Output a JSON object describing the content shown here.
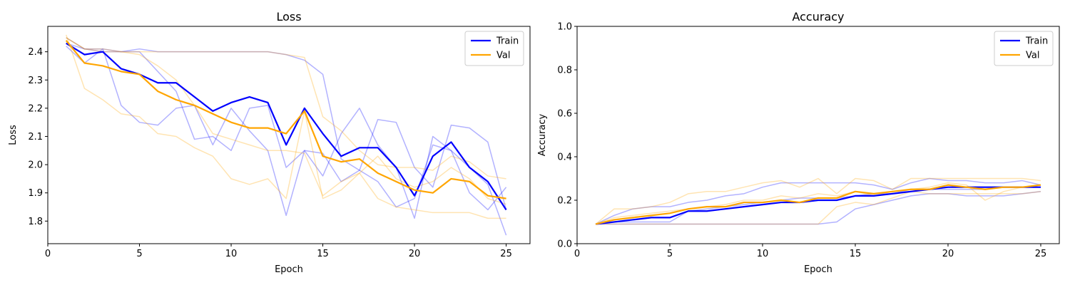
{
  "chart_data": [
    {
      "type": "line",
      "title": "Loss",
      "xlabel": "Epoch",
      "ylabel": "Loss",
      "xlim": [
        0,
        26.3
      ],
      "ylim": [
        1.72,
        2.49
      ],
      "xticks": [
        0,
        5,
        10,
        15,
        20,
        25
      ],
      "yticks": [
        1.8,
        1.9,
        2.0,
        2.1,
        2.2,
        2.3,
        2.4
      ],
      "ytick_decimals": 1,
      "legend": "top-right",
      "x": [
        1,
        2,
        3,
        4,
        5,
        6,
        7,
        8,
        9,
        10,
        11,
        12,
        13,
        14,
        15,
        16,
        17,
        18,
        19,
        20,
        21,
        22,
        23,
        24,
        25
      ],
      "series": [
        {
          "name": "Train",
          "color": "#0000ff",
          "values": [
            2.43,
            2.39,
            2.4,
            2.34,
            2.32,
            2.29,
            2.29,
            2.24,
            2.19,
            2.22,
            2.24,
            2.22,
            2.07,
            2.2,
            2.11,
            2.03,
            2.06,
            2.06,
            1.99,
            1.89,
            2.03,
            2.08,
            1.99,
            1.94,
            1.84
          ]
        },
        {
          "name": "Val",
          "color": "#ffa500",
          "values": [
            2.44,
            2.36,
            2.35,
            2.33,
            2.32,
            2.26,
            2.23,
            2.21,
            2.18,
            2.15,
            2.13,
            2.13,
            2.11,
            2.19,
            2.03,
            2.01,
            2.02,
            1.97,
            1.94,
            1.91,
            1.9,
            1.95,
            1.94,
            1.89,
            1.88
          ]
        }
      ],
      "runs": [
        {
          "color": "#0000ff",
          "values": [
            2.42,
            2.36,
            2.41,
            2.21,
            2.15,
            2.14,
            2.2,
            2.21,
            2.07,
            2.2,
            2.12,
            2.05,
            1.82,
            2.05,
            1.96,
            2.11,
            2.2,
            2.07,
            1.99,
            1.81,
            2.1,
            2.05,
            1.9,
            1.84,
            1.92
          ]
        },
        {
          "color": "#0000ff",
          "values": [
            2.45,
            2.41,
            2.41,
            2.4,
            2.41,
            2.4,
            2.4,
            2.4,
            2.4,
            2.4,
            2.4,
            2.4,
            2.39,
            2.37,
            2.32,
            2.02,
            1.98,
            1.94,
            1.85,
            1.88,
            2.07,
            2.05,
            1.99,
            1.93,
            1.75
          ]
        },
        {
          "color": "#0000ff",
          "values": [
            2.43,
            2.41,
            2.4,
            2.4,
            2.4,
            2.33,
            2.26,
            2.09,
            2.1,
            2.05,
            2.2,
            2.21,
            1.99,
            2.05,
            2.04,
            1.94,
            1.98,
            2.16,
            2.15,
            1.99,
            1.92,
            2.14,
            2.13,
            2.08,
            1.84
          ]
        },
        {
          "color": "#ffa500",
          "values": [
            2.46,
            2.27,
            2.23,
            2.18,
            2.17,
            2.11,
            2.1,
            2.06,
            2.03,
            1.95,
            1.93,
            1.95,
            1.88,
            2.19,
            1.88,
            1.91,
            1.97,
            1.88,
            1.85,
            1.84,
            1.83,
            1.83,
            1.83,
            1.81,
            1.81
          ]
        },
        {
          "color": "#ffa500",
          "values": [
            2.45,
            2.41,
            2.4,
            2.4,
            2.39,
            2.35,
            2.3,
            2.21,
            2.11,
            2.09,
            2.07,
            2.05,
            2.05,
            2.04,
            1.89,
            1.94,
            1.97,
            2.03,
            1.95,
            1.92,
            1.94,
            1.99,
            1.95,
            1.88,
            1.86
          ]
        },
        {
          "color": "#ffa500",
          "values": [
            2.45,
            2.41,
            2.41,
            2.4,
            2.4,
            2.4,
            2.4,
            2.4,
            2.4,
            2.4,
            2.4,
            2.4,
            2.39,
            2.38,
            2.17,
            2.12,
            2.05,
            2.0,
            1.99,
            1.99,
            1.98,
            2.03,
            2.01,
            1.96,
            1.95
          ]
        }
      ]
    },
    {
      "type": "line",
      "title": "Accuracy",
      "xlabel": "Epoch",
      "ylabel": "Accuracy",
      "xlim": [
        0,
        26.0
      ],
      "ylim": [
        0.0,
        1.0
      ],
      "xticks": [
        0,
        5,
        10,
        15,
        20,
        25
      ],
      "yticks": [
        0.0,
        0.2,
        0.4,
        0.6,
        0.8,
        1.0
      ],
      "ytick_decimals": 1,
      "legend": "top-right",
      "x": [
        1,
        2,
        3,
        4,
        5,
        6,
        7,
        8,
        9,
        10,
        11,
        12,
        13,
        14,
        15,
        16,
        17,
        18,
        19,
        20,
        21,
        22,
        23,
        24,
        25
      ],
      "series": [
        {
          "name": "Train",
          "color": "#0000ff",
          "values": [
            0.09,
            0.1,
            0.11,
            0.12,
            0.12,
            0.15,
            0.15,
            0.16,
            0.17,
            0.18,
            0.19,
            0.19,
            0.2,
            0.2,
            0.22,
            0.22,
            0.23,
            0.24,
            0.25,
            0.26,
            0.26,
            0.26,
            0.26,
            0.26,
            0.26
          ]
        },
        {
          "name": "Val",
          "color": "#ffa500",
          "values": [
            0.09,
            0.11,
            0.12,
            0.13,
            0.14,
            0.16,
            0.17,
            0.17,
            0.19,
            0.19,
            0.2,
            0.19,
            0.21,
            0.21,
            0.24,
            0.23,
            0.24,
            0.25,
            0.25,
            0.27,
            0.26,
            0.25,
            0.26,
            0.26,
            0.27
          ]
        }
      ],
      "runs": [
        {
          "color": "#0000ff",
          "values": [
            0.09,
            0.13,
            0.16,
            0.17,
            0.17,
            0.19,
            0.2,
            0.22,
            0.23,
            0.26,
            0.28,
            0.28,
            0.28,
            0.28,
            0.28,
            0.27,
            0.25,
            0.28,
            0.3,
            0.29,
            0.29,
            0.28,
            0.28,
            0.29,
            0.27
          ]
        },
        {
          "color": "#0000ff",
          "values": [
            0.09,
            0.09,
            0.09,
            0.09,
            0.09,
            0.09,
            0.09,
            0.09,
            0.09,
            0.09,
            0.09,
            0.09,
            0.09,
            0.1,
            0.16,
            0.18,
            0.2,
            0.22,
            0.23,
            0.23,
            0.22,
            0.22,
            0.22,
            0.23,
            0.24
          ]
        },
        {
          "color": "#0000ff",
          "values": [
            0.09,
            0.1,
            0.1,
            0.1,
            0.1,
            0.15,
            0.16,
            0.17,
            0.18,
            0.19,
            0.2,
            0.21,
            0.21,
            0.21,
            0.22,
            0.23,
            0.23,
            0.25,
            0.25,
            0.25,
            0.25,
            0.25,
            0.26,
            0.26,
            0.26
          ]
        },
        {
          "color": "#ffa500",
          "values": [
            0.09,
            0.16,
            0.16,
            0.17,
            0.19,
            0.23,
            0.24,
            0.24,
            0.26,
            0.28,
            0.29,
            0.26,
            0.3,
            0.23,
            0.3,
            0.29,
            0.25,
            0.3,
            0.3,
            0.3,
            0.3,
            0.3,
            0.3,
            0.3,
            0.29
          ]
        },
        {
          "color": "#ffa500",
          "values": [
            0.09,
            0.12,
            0.13,
            0.14,
            0.15,
            0.16,
            0.17,
            0.18,
            0.2,
            0.2,
            0.22,
            0.21,
            0.23,
            0.22,
            0.24,
            0.22,
            0.24,
            0.25,
            0.26,
            0.28,
            0.27,
            0.2,
            0.24,
            0.26,
            0.26
          ]
        },
        {
          "color": "#ffa500",
          "values": [
            0.09,
            0.09,
            0.09,
            0.09,
            0.09,
            0.09,
            0.09,
            0.09,
            0.09,
            0.09,
            0.09,
            0.09,
            0.09,
            0.17,
            0.19,
            0.18,
            0.21,
            0.24,
            0.23,
            0.23,
            0.23,
            0.23,
            0.23,
            0.23,
            0.24
          ]
        }
      ]
    }
  ]
}
